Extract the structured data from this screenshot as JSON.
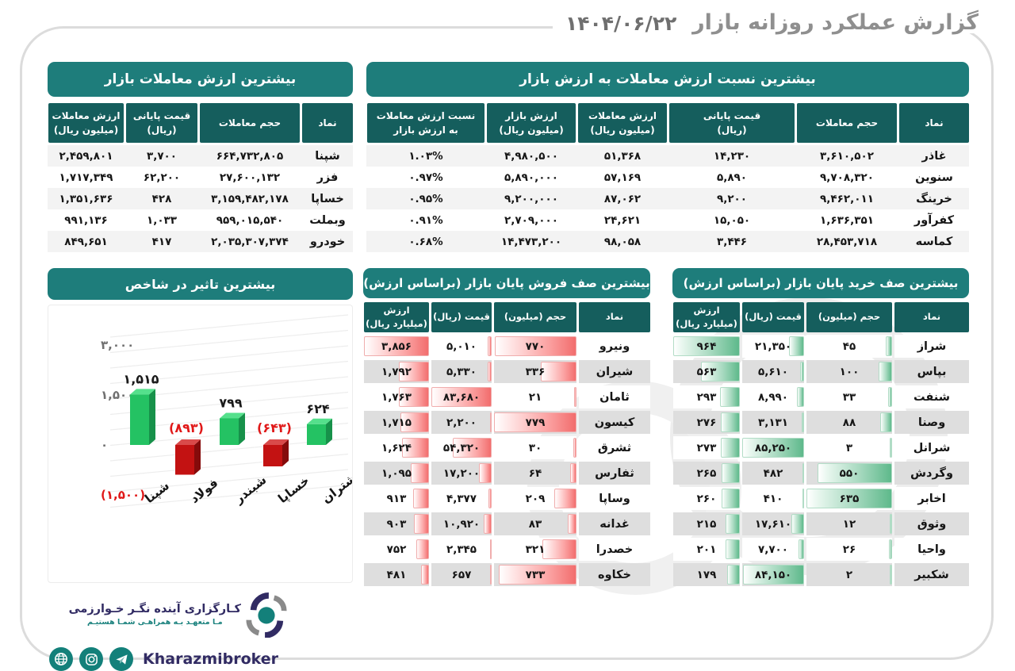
{
  "header": {
    "title": "گزارش عملکرد روزانه بازار",
    "date": "۱۴۰۴/۰۶/۲۲"
  },
  "colors": {
    "banner_teal": "#1e7d7b",
    "header_teal": "#155e5d",
    "sell_bar_red": "#f26d6d",
    "buy_bar_green": "#5eb98b",
    "negative_red": "#e01818",
    "positive_green": "#24c263"
  },
  "top_value_table": {
    "title": "بیشترین ارزش معاملات بازار",
    "headers": [
      "نماد",
      "حجم معاملات",
      "قیمت پایانی\n(ریال)",
      "ارزش معاملات\n(میلیون ریال)"
    ],
    "rows": [
      [
        "شپنا",
        "۶۶۴,۷۳۲,۸۰۵",
        "۳,۷۰۰",
        "۲,۴۵۹,۸۰۱"
      ],
      [
        "فزر",
        "۲۷,۶۰۰,۱۳۲",
        "۶۲,۲۰۰",
        "۱,۷۱۷,۳۴۹"
      ],
      [
        "خساپا",
        "۳,۱۵۹,۴۸۲,۱۷۸",
        "۴۲۸",
        "۱,۳۵۱,۶۳۶"
      ],
      [
        "وبملت",
        "۹۵۹,۰۱۵,۵۴۰",
        "۱,۰۳۳",
        "۹۹۱,۱۳۶"
      ],
      [
        "خودرو",
        "۲,۰۳۵,۳۰۷,۳۷۴",
        "۴۱۷",
        "۸۴۹,۶۵۱"
      ]
    ]
  },
  "ratio_table": {
    "title": "بیشترین نسبت ارزش معاملات به ارزش بازار",
    "headers": [
      "نماد",
      "حجم معاملات",
      "قیمت پایانی\n(ریال)",
      "ارزش معاملات\n(میلیون ریال)",
      "ارزش بازار\n(میلیون ریال)",
      "نسبت ارزش معاملات\nبه ارزش بازار"
    ],
    "rows": [
      [
        "غاذر",
        "۳,۶۱۰,۵۰۲",
        "۱۴,۲۳۰",
        "۵۱,۳۶۸",
        "۴,۹۸۰,۵۰۰",
        "۱.۰۳%"
      ],
      [
        "سنوین",
        "۹,۷۰۸,۳۲۰",
        "۵,۸۹۰",
        "۵۷,۱۶۹",
        "۵,۸۹۰,۰۰۰",
        "۰.۹۷%"
      ],
      [
        "خرینگ",
        "۹,۴۶۲,۰۱۱",
        "۹,۲۰۰",
        "۸۷,۰۶۲",
        "۹,۲۰۰,۰۰۰",
        "۰.۹۵%"
      ],
      [
        "کفرآور",
        "۱,۶۳۶,۳۵۱",
        "۱۵,۰۵۰",
        "۲۴,۶۲۱",
        "۲,۷۰۹,۰۰۰",
        "۰.۹۱%"
      ],
      [
        "کماسه",
        "۲۸,۴۵۳,۷۱۸",
        "۳,۴۴۶",
        "۹۸,۰۵۸",
        "۱۴,۴۷۳,۲۰۰",
        "۰.۶۸%"
      ]
    ]
  },
  "chart_data": {
    "type": "bar",
    "title": "بیشترین تاثیر در شاخص",
    "categories": [
      "شپنا",
      "فولاد",
      "شبندر",
      "خساپا",
      "شتران"
    ],
    "values": [
      1515,
      -893,
      799,
      -643,
      624
    ],
    "value_labels": [
      "۱,۵۱۵",
      "(۸۹۳)",
      "۷۹۹",
      "(۶۴۳)",
      "۶۲۴"
    ],
    "yticks": [
      {
        "v": 3000,
        "label": "۳,۰۰۰",
        "neg": false
      },
      {
        "v": 1500,
        "label": "۱,۵۰۰",
        "neg": false
      },
      {
        "v": 0,
        "label": "۰",
        "neg": false
      },
      {
        "v": -1500,
        "label": "(۱,۵۰۰)",
        "neg": true
      }
    ],
    "ylim": [
      -1500,
      3000
    ],
    "grid": true,
    "xlabel": "",
    "ylabel": ""
  },
  "sell_queue_table": {
    "title": "بیشترین صف فروش پایان بازار (براساس ارزش)",
    "headers": [
      "نماد",
      "حجم (میلیون)",
      "قیمت (ریال)",
      "ارزش\n(میلیارد ریال)"
    ],
    "bar_color": "red",
    "rows": [
      {
        "symbol": "ونیرو",
        "cells": [
          {
            "t": "۷۷۰",
            "n": 770
          },
          {
            "t": "۵,۰۱۰",
            "n": 5010
          },
          {
            "t": "۳,۸۵۶",
            "n": 3856
          }
        ]
      },
      {
        "symbol": "شیران",
        "cells": [
          {
            "t": "۳۳۶",
            "n": 336
          },
          {
            "t": "۵,۳۳۰",
            "n": 5330
          },
          {
            "t": "۱,۷۹۲",
            "n": 1792
          }
        ]
      },
      {
        "symbol": "ثامان",
        "cells": [
          {
            "t": "۲۱",
            "n": 21
          },
          {
            "t": "۸۳,۶۸۰",
            "n": 83680
          },
          {
            "t": "۱,۷۶۳",
            "n": 1763
          }
        ]
      },
      {
        "symbol": "کیسون",
        "cells": [
          {
            "t": "۷۷۹",
            "n": 779
          },
          {
            "t": "۲,۲۰۰",
            "n": 2200
          },
          {
            "t": "۱,۷۱۵",
            "n": 1715
          }
        ]
      },
      {
        "symbol": "ثشرق",
        "cells": [
          {
            "t": "۳۰",
            "n": 30
          },
          {
            "t": "۵۴,۳۲۰",
            "n": 54320
          },
          {
            "t": "۱,۶۲۴",
            "n": 1624
          }
        ]
      },
      {
        "symbol": "ثفارس",
        "cells": [
          {
            "t": "۶۴",
            "n": 64
          },
          {
            "t": "۱۷,۲۰۰",
            "n": 17200
          },
          {
            "t": "۱,۰۹۵",
            "n": 1095
          }
        ]
      },
      {
        "symbol": "وساپا",
        "cells": [
          {
            "t": "۲۰۹",
            "n": 209
          },
          {
            "t": "۴,۳۷۷",
            "n": 4377
          },
          {
            "t": "۹۱۳",
            "n": 913
          }
        ]
      },
      {
        "symbol": "غدانه",
        "cells": [
          {
            "t": "۸۳",
            "n": 83
          },
          {
            "t": "۱۰,۹۲۰",
            "n": 10920
          },
          {
            "t": "۹۰۳",
            "n": 903
          }
        ]
      },
      {
        "symbol": "خصدرا",
        "cells": [
          {
            "t": "۳۲۱",
            "n": 321
          },
          {
            "t": "۲,۳۴۵",
            "n": 2345
          },
          {
            "t": "۷۵۲",
            "n": 752
          }
        ]
      },
      {
        "symbol": "خکاوه",
        "cells": [
          {
            "t": "۷۳۳",
            "n": 733
          },
          {
            "t": "۶۵۷",
            "n": 657
          },
          {
            "t": "۴۸۱",
            "n": 481
          }
        ]
      }
    ]
  },
  "buy_queue_table": {
    "title": "بیشترین صف خرید پایان بازار (براساس ارزش)",
    "headers": [
      "نماد",
      "حجم (میلیون)",
      "قیمت (ریال)",
      "ارزش\n(میلیارد ریال)"
    ],
    "bar_color": "green",
    "rows": [
      {
        "symbol": "شراز",
        "cells": [
          {
            "t": "۴۵",
            "n": 45
          },
          {
            "t": "۲۱,۳۵۰",
            "n": 21350
          },
          {
            "t": "۹۶۴",
            "n": 964
          }
        ]
      },
      {
        "symbol": "بپاس",
        "cells": [
          {
            "t": "۱۰۰",
            "n": 100
          },
          {
            "t": "۵,۶۱۰",
            "n": 5610
          },
          {
            "t": "۵۶۳",
            "n": 563
          }
        ]
      },
      {
        "symbol": "شنفت",
        "cells": [
          {
            "t": "۳۳",
            "n": 33
          },
          {
            "t": "۸,۹۹۰",
            "n": 8990
          },
          {
            "t": "۲۹۳",
            "n": 293
          }
        ]
      },
      {
        "symbol": "وصنا",
        "cells": [
          {
            "t": "۸۸",
            "n": 88
          },
          {
            "t": "۳,۱۳۱",
            "n": 3131
          },
          {
            "t": "۲۷۶",
            "n": 276
          }
        ]
      },
      {
        "symbol": "شرانل",
        "cells": [
          {
            "t": "۳",
            "n": 3
          },
          {
            "t": "۸۵,۲۵۰",
            "n": 85250
          },
          {
            "t": "۲۷۳",
            "n": 273
          }
        ]
      },
      {
        "symbol": "وگردش",
        "cells": [
          {
            "t": "۵۵۰",
            "n": 550
          },
          {
            "t": "۴۸۲",
            "n": 482
          },
          {
            "t": "۲۶۵",
            "n": 265
          }
        ]
      },
      {
        "symbol": "اخابر",
        "cells": [
          {
            "t": "۶۳۵",
            "n": 635
          },
          {
            "t": "۴۱۰",
            "n": 410
          },
          {
            "t": "۲۶۰",
            "n": 260
          }
        ]
      },
      {
        "symbol": "وثوق",
        "cells": [
          {
            "t": "۱۲",
            "n": 12
          },
          {
            "t": "۱۷,۶۱۰",
            "n": 17610
          },
          {
            "t": "۲۱۵",
            "n": 215
          }
        ]
      },
      {
        "symbol": "واحیا",
        "cells": [
          {
            "t": "۲۶",
            "n": 26
          },
          {
            "t": "۷,۷۰۰",
            "n": 7700
          },
          {
            "t": "۲۰۱",
            "n": 201
          }
        ]
      },
      {
        "symbol": "شکبیر",
        "cells": [
          {
            "t": "۲",
            "n": 2
          },
          {
            "t": "۸۴,۱۵۰",
            "n": 84150
          },
          {
            "t": "۱۷۹",
            "n": 179
          }
        ]
      }
    ]
  },
  "footer": {
    "brand": "کـارگزاری آینده نگـر خـوارزمی",
    "tagline": "مـا متعهـد بـه همراهـی شمـا هستیـم",
    "handle": "Kharazmibroker",
    "icons": [
      "globe-icon",
      "instagram-icon",
      "telegram-icon"
    ]
  }
}
